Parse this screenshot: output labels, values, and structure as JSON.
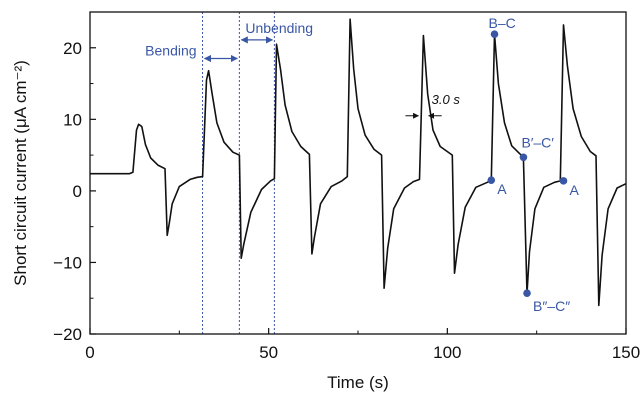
{
  "chart_data": {
    "type": "line",
    "xlabel": "Time (s)",
    "ylabel": "Short circuit current (μA cm⁻²)",
    "xlim": [
      0,
      150
    ],
    "ylim": [
      -20,
      25
    ],
    "xticks": [
      0,
      50,
      100,
      150
    ],
    "xtick_labels": [
      "0",
      "50",
      "100",
      "150"
    ],
    "yticks": [
      -20,
      -10,
      0,
      10,
      20
    ],
    "ytick_labels": [
      "−20",
      "−10",
      "0",
      "10",
      "20"
    ],
    "grid": false,
    "series": [
      {
        "color": "#111111",
        "x": [
          0,
          11,
          12,
          13,
          13.6,
          14.5,
          15.5,
          17,
          19,
          21,
          21.6,
          22.2,
          23,
          25,
          28,
          30,
          31.5,
          32.6,
          33.2,
          34.2,
          35.5,
          37.5,
          40,
          41.8,
          42.3,
          43,
          45,
          48,
          50.5,
          51.6,
          52.2,
          53.3,
          54.6,
          56.5,
          59,
          61.4,
          62.1,
          62.8,
          64.5,
          67.5,
          70.5,
          72,
          72.8,
          73.8,
          75,
          77,
          79.5,
          81.6,
          82.3,
          83.3,
          85,
          88,
          90.5,
          92.2,
          93.3,
          94.5,
          96,
          98,
          101.4,
          102,
          103,
          105,
          108,
          111.2,
          112.3,
          113.2,
          114.3,
          116,
          118,
          121.3,
          122.3,
          123,
          124.5,
          127,
          130,
          131.6,
          132.5,
          133.6,
          135.2,
          137.5,
          140,
          141.6,
          142.4,
          143.3,
          145,
          147.5,
          150
        ],
        "y": [
          2.4,
          2.4,
          2.6,
          8.5,
          9.3,
          9.0,
          6.5,
          4.6,
          3.6,
          3.1,
          -6.2,
          -4.5,
          -1.8,
          0.6,
          1.6,
          1.9,
          2.0,
          15.5,
          16.8,
          13.5,
          9.5,
          6.8,
          5.4,
          5.0,
          -9.4,
          -7.5,
          -3.0,
          0.2,
          1.4,
          1.7,
          20.5,
          17.0,
          12.0,
          8.3,
          6.2,
          5.1,
          -8.8,
          -6.5,
          -1.8,
          0.6,
          1.4,
          2.0,
          24.0,
          17.0,
          11.5,
          7.8,
          5.8,
          5.0,
          -13.6,
          -8.0,
          -2.5,
          0.4,
          1.3,
          1.6,
          21.7,
          13.5,
          8.5,
          6.2,
          5.0,
          -11.5,
          -7.5,
          -2.3,
          0.5,
          1.2,
          1.5,
          21.9,
          15.0,
          9.5,
          6.3,
          4.7,
          -14.3,
          -8.5,
          -2.5,
          0.5,
          1.2,
          1.4,
          23.2,
          17.5,
          11.5,
          7.6,
          5.5,
          4.9,
          -16.0,
          -9.0,
          -2.5,
          0.4,
          1.0
        ]
      }
    ],
    "markers": [
      {
        "x": 112.3,
        "y": 1.5,
        "label": "A"
      },
      {
        "x": 113.2,
        "y": 21.9,
        "label": "B–C"
      },
      {
        "x": 121.3,
        "y": 4.7,
        "label": "B′–C′"
      },
      {
        "x": 122.3,
        "y": -14.3,
        "label": "B″–C″"
      },
      {
        "x": 132.5,
        "y": 1.4,
        "label": "A"
      }
    ],
    "marker_color": "#3a57a5",
    "vlines": [
      31.5,
      41.8,
      51.6
    ],
    "vline_color": "#3a57a5",
    "annotations": {
      "bending": "Bending",
      "unbending": "Unbending",
      "duration": "3.0 s"
    },
    "interval_arrows": [
      {
        "from": 31.5,
        "to": 41.8,
        "y": 18.5
      },
      {
        "from": 41.8,
        "to": 51.6,
        "y": 21.1
      },
      {
        "from": 92.2,
        "to": 94.5,
        "y": 10.5
      }
    ]
  }
}
